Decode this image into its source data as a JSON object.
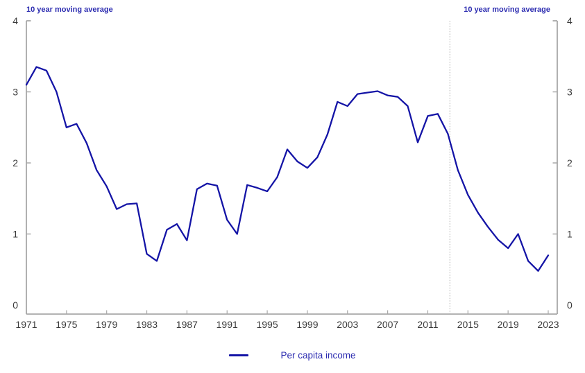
{
  "chart": {
    "annotation_left": "10 year moving average",
    "annotation_right": "10 year moving average",
    "legend_label": "Per capita income"
  },
  "chart_data": {
    "type": "line",
    "title": "",
    "xlabel": "",
    "ylabel": "",
    "x": [
      1971,
      1972,
      1973,
      1974,
      1975,
      1976,
      1977,
      1978,
      1979,
      1980,
      1981,
      1982,
      1983,
      1984,
      1985,
      1986,
      1987,
      1988,
      1989,
      1990,
      1991,
      1992,
      1993,
      1994,
      1995,
      1996,
      1997,
      1998,
      1999,
      2000,
      2001,
      2002,
      2003,
      2004,
      2005,
      2006,
      2007,
      2008,
      2009,
      2010,
      2011,
      2012,
      2013,
      2014,
      2015,
      2016,
      2017,
      2018,
      2019,
      2020,
      2021,
      2022,
      2023
    ],
    "series": [
      {
        "name": "Per capita income",
        "values": [
          3.1,
          3.35,
          3.3,
          3.0,
          2.5,
          2.55,
          2.28,
          1.9,
          1.67,
          1.35,
          1.42,
          1.43,
          0.72,
          0.62,
          1.06,
          1.14,
          0.91,
          1.63,
          1.71,
          1.68,
          1.2,
          1.0,
          1.69,
          1.65,
          1.6,
          1.8,
          2.19,
          2.02,
          1.93,
          2.08,
          2.4,
          2.86,
          2.8,
          2.97,
          2.99,
          3.01,
          2.95,
          2.93,
          2.8,
          2.29,
          2.66,
          2.69,
          2.41,
          1.9,
          1.55,
          1.3,
          1.1,
          0.92,
          0.8,
          1.0,
          0.62,
          0.48,
          0.7
        ]
      }
    ],
    "ylim": [
      0,
      4
    ],
    "yticks": [
      0,
      1,
      2,
      3,
      4
    ],
    "xticks": [
      1971,
      1975,
      1979,
      1983,
      1987,
      1991,
      1995,
      1999,
      2003,
      2007,
      2011,
      2015,
      2019,
      2023
    ],
    "y_axis_sides": [
      "left",
      "right"
    ],
    "grid": false,
    "vline_year": 2013.2,
    "annotations": [
      {
        "text": "10 year moving average",
        "position": "top-left"
      },
      {
        "text": "10 year moving average",
        "position": "top-right"
      }
    ],
    "legend": {
      "label": "Per capita income",
      "position": "bottom-center"
    },
    "colors": {
      "line": "#1414A6",
      "annotation_text": "#2B2BB0",
      "legend_text": "#2B2BB0",
      "axis": "#A8A8A8",
      "tick_label": "#3A3A3A",
      "vline": "#ADADAD"
    }
  }
}
